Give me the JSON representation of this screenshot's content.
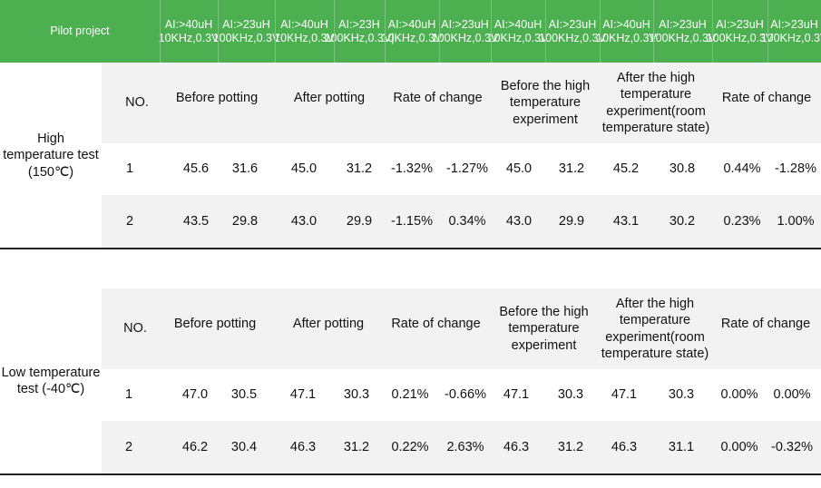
{
  "header": {
    "project_label": "Pilot project",
    "columns": [
      "AI:>40uH 10KHz,0.3V",
      "AI:>23uH 100KHz,0.3V",
      "AI:>40uH 10KHz,0.3V",
      "AI:>23H 100KHz,0.3V|",
      "AI:>40uH 10KHz,0.3V",
      "AI:>23uH 100KHz,0.3V",
      "AI:>40uH 10KHz,0.3V",
      "AI:>23uH 100KHz,0.3V",
      "AI:>40uH 10KHz,0.3V",
      "AI:>23uH 100KHz,0.3V",
      "AI:>23uH 100KHz,0.3V",
      "AI:>23uH 100KHz,0.3V"
    ]
  },
  "sections": [
    {
      "label": "High temperature test (150℃)",
      "labels": {
        "no": "NO.",
        "before_potting": "Before potting",
        "after_potting": "After potting",
        "rate1": "Rate of change",
        "before_exp": "Before the high temperature experiment",
        "after_exp": "After the high temperature experiment(room temperature state)",
        "rate2": "Rate of change"
      },
      "rows": [
        {
          "no": "1",
          "cells": [
            "45.6",
            "31.6",
            "45.0",
            "31.2",
            "-1.32%",
            "-1.27%",
            "45.0",
            "31.2",
            "45.2",
            "30.8",
            "0.44%",
            "-1.28%"
          ]
        },
        {
          "no": "2",
          "cells": [
            "43.5",
            "29.8",
            "43.0",
            "29.9",
            "-1.15%",
            "0.34%",
            "43.0",
            "29.9",
            "43.1",
            "30.2",
            "0.23%",
            "1.00%"
          ]
        }
      ]
    },
    {
      "label": "Low temperature test (-40℃)",
      "labels": {
        "no": "NO.",
        "before_potting": "Before potting",
        "after_potting": "After potting",
        "rate1": "Rate of change",
        "before_exp": "Before the high temperature experiment",
        "after_exp": "After the high temperature experiment(room temperature state)",
        "rate2": "Rate of change"
      },
      "rows": [
        {
          "no": "1",
          "cells": [
            "47.0",
            "30.5",
            "47.1",
            "30.3",
            "0.21%",
            "-0.66%",
            "47.1",
            "30.3",
            "47.1",
            "30.3",
            "0.00%",
            "0.00%"
          ]
        },
        {
          "no": "2",
          "cells": [
            "46.2",
            "30.4",
            "46.3",
            "31.2",
            "0.22%",
            "2.63%",
            "46.3",
            "31.2",
            "46.3",
            "31.1",
            "0.00%",
            "-0.32%"
          ]
        }
      ]
    }
  ]
}
